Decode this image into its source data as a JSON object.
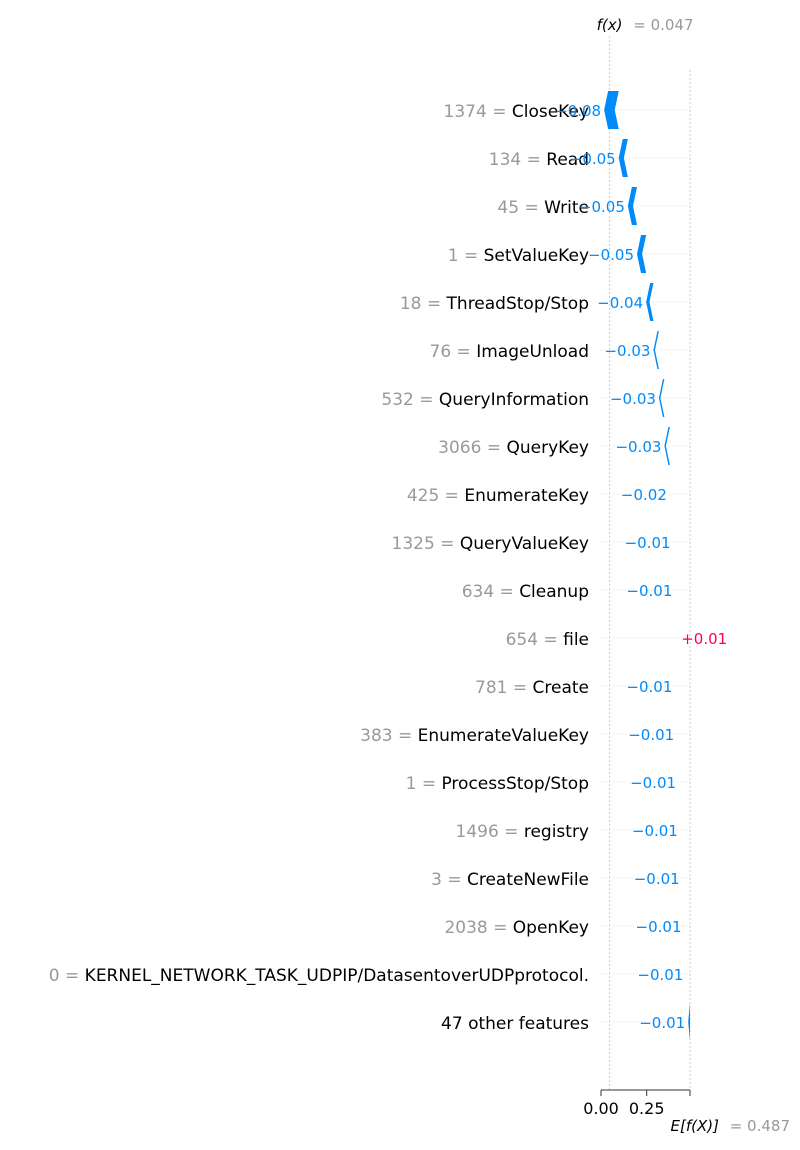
{
  "chart_data": {
    "type": "waterfall",
    "title": "",
    "fx_label": "f(x)",
    "fx_value": "= 0.047",
    "fx": 0.047,
    "base_label": "E[f(X)]",
    "base_value": "= 0.487",
    "base": 0.487,
    "xlim": [
      0.0,
      0.487
    ],
    "x_ticks": [
      {
        "value": 0.0,
        "label": "0.00"
      },
      {
        "value": 0.25,
        "label": "0.25"
      }
    ],
    "features": [
      {
        "value": "1374",
        "name": "CloseKey",
        "contribution": -0.08,
        "label": "−0.08"
      },
      {
        "value": "134",
        "name": "Read",
        "contribution": -0.05,
        "label": "−0.05"
      },
      {
        "value": "45",
        "name": "Write",
        "contribution": -0.05,
        "label": "−0.05"
      },
      {
        "value": "1",
        "name": "SetValueKey",
        "contribution": -0.05,
        "label": "−0.05"
      },
      {
        "value": "18",
        "name": "ThreadStop/Stop",
        "contribution": -0.04,
        "label": "−0.04"
      },
      {
        "value": "76",
        "name": "ImageUnload",
        "contribution": -0.03,
        "label": "−0.03"
      },
      {
        "value": "532",
        "name": "QueryInformation",
        "contribution": -0.03,
        "label": "−0.03"
      },
      {
        "value": "3066",
        "name": "QueryKey",
        "contribution": -0.03,
        "label": "−0.03"
      },
      {
        "value": "425",
        "name": "EnumerateKey",
        "contribution": -0.02,
        "label": "−0.02"
      },
      {
        "value": "1325",
        "name": "QueryValueKey",
        "contribution": -0.01,
        "label": "−0.01"
      },
      {
        "value": "634",
        "name": "Cleanup",
        "contribution": -0.01,
        "label": "−0.01"
      },
      {
        "value": "654",
        "name": "file",
        "contribution": 0.01,
        "label": "+0.01"
      },
      {
        "value": "781",
        "name": "Create",
        "contribution": -0.01,
        "label": "−0.01"
      },
      {
        "value": "383",
        "name": "EnumerateValueKey",
        "contribution": -0.01,
        "label": "−0.01"
      },
      {
        "value": "1",
        "name": "ProcessStop/Stop",
        "contribution": -0.01,
        "label": "−0.01"
      },
      {
        "value": "1496",
        "name": "registry",
        "contribution": -0.01,
        "label": "−0.01"
      },
      {
        "value": "3",
        "name": "CreateNewFile",
        "contribution": -0.01,
        "label": "−0.01"
      },
      {
        "value": "2038",
        "name": "OpenKey",
        "contribution": -0.01,
        "label": "−0.01"
      },
      {
        "value": "0",
        "name": "KERNEL_NETWORK_TASK_UDPIP/DatasentoverUDPprotocol.",
        "contribution": -0.01,
        "label": "−0.01"
      },
      {
        "value": "",
        "name": "47 other features",
        "contribution": -0.01,
        "label": "−0.01"
      }
    ],
    "colors": {
      "negative": "#008bfb",
      "positive": "#ff0051",
      "gray": "#999999"
    }
  }
}
